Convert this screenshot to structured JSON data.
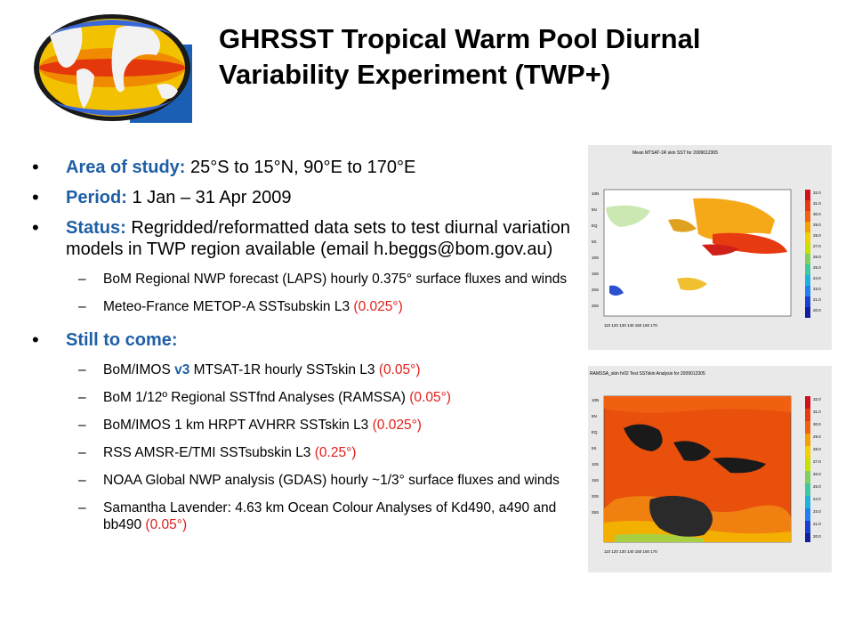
{
  "title": {
    "line1": "GHRSST Tropical Warm Pool Diurnal",
    "line2": "Variability Experiment (TWP+)"
  },
  "bullets": {
    "area": {
      "label": "Area of study:",
      "text": " 25°S to 15°N, 90°E to 170°E"
    },
    "period": {
      "label": "Period:",
      "text": " 1 Jan – 31 Apr 2009"
    },
    "status": {
      "label": "Status:",
      "text": " Regridded/reformatted data sets to test diurnal variation models in TWP region available (email h.beggs@bom.gov.au)"
    },
    "status_sub": [
      {
        "text": "BoM Regional NWP forecast (LAPS) hourly 0.375° surface fluxes and winds",
        "red": ""
      },
      {
        "text": "Meteo-France METOP-A SSTsubskin L3 ",
        "red": "(0.025°)"
      }
    ],
    "tocome": {
      "label": "Still to come:"
    },
    "tocome_sub": [
      {
        "pre": "BoM/IMOS ",
        "blue": "v3",
        "text": " MTSAT-1R hourly SSTskin L3  ",
        "red": "(0.05°)"
      },
      {
        "pre": "",
        "blue": "",
        "text": "BoM 1/12º Regional SSTfnd Analyses (RAMSSA) ",
        "red": "(0.05°)"
      },
      {
        "pre": "",
        "blue": "",
        "text": "BoM/IMOS 1 km HRPT AVHRR SSTskin L3 ",
        "red": "(0.025°)"
      },
      {
        "pre": "",
        "blue": "",
        "text": "RSS AMSR-E/TMI SSTsubskin L3 ",
        "red": "(0.25°)"
      },
      {
        "pre": "",
        "blue": "",
        "text": "NOAA Global NWP analysis (GDAS) hourly ~1/3° surface fluxes and winds",
        "red": ""
      },
      {
        "pre": "",
        "blue": "",
        "text": "Samantha Lavender: 4.63 km Ocean Colour Analyses of Kd490, a490 and bb490 ",
        "red": "(0.05°)"
      }
    ]
  },
  "maps": {
    "top_caption": "Mean MTSAT-1R skin SST for 2009012305",
    "bottom_caption": "RAMSSA_skin fv02 Test SSTskin Analysis for 2009012305",
    "lon_labels": [
      "110",
      "120",
      "130",
      "140",
      "150",
      "160"
    ],
    "lat_labels": [
      "10N",
      "5N",
      "EQ",
      "5S",
      "10S",
      "15S",
      "20S",
      "25S"
    ],
    "scale_labels": [
      "32.0",
      "31.0",
      "30.0",
      "29.0",
      "28.0",
      "27.0",
      "26.0",
      "25.0",
      "24.0",
      "23.0",
      "21.0",
      "20.0"
    ]
  }
}
